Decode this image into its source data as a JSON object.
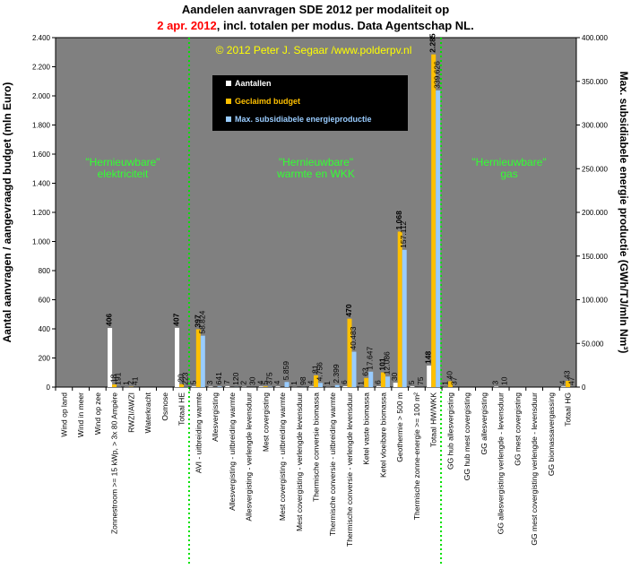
{
  "chart_data": {
    "type": "bar",
    "title_line1": "Aandelen aanvragen SDE 2012 per modaliteit op",
    "title_date": "2 apr. 2012",
    "title_rest": ", incl. totalen per modus. Data Agentschap NL.",
    "copyright": "© 2012 Peter J. Segaar /www.polderpv.nl",
    "ylabel": "Aantal aanvragen /  aangevraagd budget (mln Euro)",
    "y2label": "Max. subsidiabele energie productie (GWh/TJ/mln Nm³)",
    "annotations": [
      [
        "\"Hernieuwbare\"",
        "elektriciteit"
      ],
      [
        "\"Hernieuwbare\"",
        "warmte en WKK"
      ],
      [
        "\"Hernieuwbare\"",
        "gas"
      ]
    ],
    "categories": [
      "Wind op land",
      "Wind in meer",
      "Wind op zee",
      "Zonnestroom >= 15 kWp, > 3x 80 Ampère",
      "RWZI/AWZI",
      "Waterkracht",
      "Osmose",
      "Totaal HE",
      "AVI - uitbreiding warmte",
      "Allesvergisting",
      "Allesvergisting - uitbreiding warmte",
      "Allesvergisting - verlengde levensduur",
      "Mest covergisting",
      "Mest covergisting - uitbreiding warmte",
      "Mest covergisting - verlengde levensduur",
      "Thermische conversie biomassa",
      "Thermische conversie - uitbreiding warmte",
      "Thermische conversie - verlengde levensduur",
      "Ketel vaste biomassa",
      "Ketel vloeibare biomassa",
      "Geothermie > 500 m",
      "Thermische zonne-energie >= 100 m²",
      "Totaal HW/WKK",
      "GG hub allesvergisting",
      "GG hub mest covergisting",
      "GG allesvergisting",
      "GG allesvergisting verlengde - levensduur",
      "GG mest covergisting",
      "GG mest covergisting verlengde - levensduur",
      "GG biomassavergassing",
      "Totaal HG"
    ],
    "series": [
      {
        "name": "Aantallen",
        "color": "#ffffff",
        "values": [
          null,
          null,
          null,
          406,
          1,
          null,
          null,
          407,
          5,
          3,
          7,
          2,
          4,
          4,
          1,
          4,
          1,
          6,
          1,
          6,
          30,
          5,
          148,
          1,
          null,
          null,
          3,
          null,
          null,
          null,
          4
        ]
      },
      {
        "name": "Geclaimd budget",
        "color": "#ffc000",
        "values": [
          null,
          null,
          null,
          18,
          2,
          null,
          null,
          20,
          397,
          null,
          null,
          null,
          5,
          null,
          null,
          81,
          null,
          470,
          63,
          101,
          1068,
          null,
          2285,
          40,
          null,
          null,
          null,
          null,
          null,
          null,
          43
        ],
        "value_labels": [
          null,
          null,
          null,
          "18",
          "2",
          null,
          null,
          "20",
          "397",
          null,
          null,
          null,
          "5",
          null,
          null,
          "81",
          null,
          "470",
          "63",
          "101",
          "1.068",
          null,
          "2.285",
          "40",
          null,
          null,
          null,
          null,
          null,
          null,
          "43"
        ]
      },
      {
        "name": "Max. subsidiabele energieproductie",
        "color": "#99ccff",
        "axis": "y2",
        "values": [
          null,
          null,
          null,
          191,
          41,
          null,
          null,
          223,
          58824,
          641,
          120,
          30,
          375,
          5859,
          98,
          4756,
          2399,
          40483,
          17647,
          12086,
          157112,
          75,
          339626,
          37,
          null,
          null,
          10,
          null,
          null,
          null,
          47
        ],
        "value_labels": [
          null,
          null,
          null,
          "191",
          "41",
          null,
          null,
          "223",
          "58.824",
          "641",
          "120",
          "30",
          "375",
          "5.859",
          "98",
          "4.756",
          "2.399",
          "40.483",
          "17.647",
          "12.086",
          "157.112",
          "75",
          "339.626",
          "37",
          null,
          null,
          "10",
          null,
          null,
          null,
          "47"
        ]
      }
    ],
    "ylim": [
      0,
      2400
    ],
    "yticks": [
      {
        "value": 0,
        "label": "0"
      },
      200,
      400,
      600,
      800,
      {
        "value": 1000,
        "label": "1.000"
      },
      {
        "value": 1200,
        "label": "1.200"
      },
      {
        "value": 1400,
        "label": "1.400"
      },
      {
        "value": 1600,
        "label": "1.600"
      },
      {
        "value": 1800,
        "label": "1.800"
      },
      {
        "value": 2000,
        "label": "2.000"
      },
      {
        "value": 2200,
        "label": "2.200"
      },
      {
        "value": 2400,
        "label": "2.400"
      }
    ],
    "y2lim": [
      0,
      400000
    ],
    "y2ticks": [
      0,
      {
        "value": 50000,
        "label": "50.000"
      },
      {
        "value": 100000,
        "label": "100.000"
      },
      {
        "value": 150000,
        "label": "150.000"
      },
      {
        "value": 200000,
        "label": "200.000"
      },
      {
        "value": 250000,
        "label": "250.000"
      },
      {
        "value": 300000,
        "label": "300.000"
      },
      {
        "value": 350000,
        "label": "350.000"
      },
      {
        "value": 400000,
        "label": "400.000"
      }
    ],
    "grid": false
  }
}
